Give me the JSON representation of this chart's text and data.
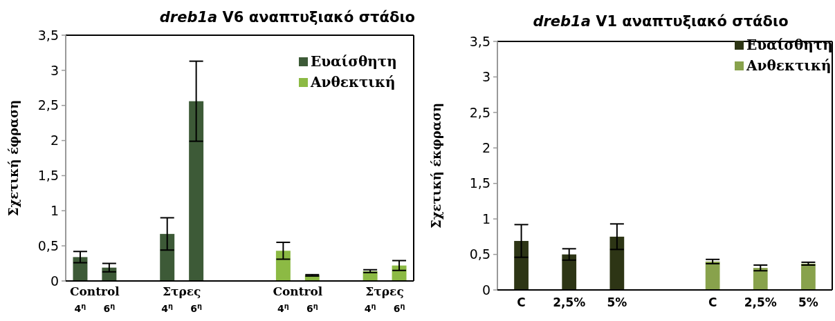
{
  "chart_data": [
    {
      "type": "bar",
      "title": "dreb1a V6 αναπτυξιακό στάδιο",
      "ylabel": "Σχετική έφραση",
      "categories": [
        "4$^{η}$",
        "6$^{η}$",
        null,
        "4$^{η}$",
        "6$^{η}$",
        null,
        null,
        "4$^{η}$",
        "6$^{η}$",
        null,
        "4$^{η}$",
        "6$^{η}$"
      ],
      "series": [
        {
          "name": "Ευαίσθητη",
          "color": "#3d5a37",
          "values": [
            0.34,
            0.19,
            null,
            0.67,
            2.56,
            null,
            null,
            null,
            null,
            null,
            null,
            null
          ],
          "errors": [
            0.08,
            0.06,
            null,
            0.23,
            0.57,
            null,
            null,
            null,
            null,
            null,
            null,
            null
          ]
        },
        {
          "name": "Ανθεκτική",
          "color": "#8cba44",
          "values": [
            null,
            null,
            null,
            null,
            null,
            null,
            null,
            0.43,
            0.08,
            null,
            0.14,
            0.22
          ],
          "errors": [
            null,
            null,
            null,
            null,
            null,
            null,
            null,
            0.12,
            0.01,
            null,
            0.02,
            0.07
          ]
        }
      ],
      "annotations": [
        "Control",
        "Στρες",
        "Control",
        "Στρες"
      ],
      "ylim": [
        0,
        3.5
      ],
      "yticks": [
        0,
        {
          "value": 0.5,
          "label": "0,5"
        },
        1,
        {
          "value": 1.5,
          "label": "1,5"
        },
        2,
        {
          "value": 2.5,
          "label": "2,5"
        },
        3,
        {
          "value": 3.5,
          "label": "3,5"
        }
      ],
      "legend": "top right",
      "grid": false
    },
    {
      "type": "bar",
      "title": "dreb1a   V1 αναπτυξιακό στάδιο",
      "ylabel": "Σχετική έκφραση",
      "categories": [
        "C",
        "2,5%",
        "5%",
        null,
        "C",
        "2,5%",
        "5%"
      ],
      "series": [
        {
          "name": "Ευαίσθητη",
          "color": "#2d3515",
          "values": [
            0.69,
            0.5,
            0.75,
            null,
            null,
            null,
            null
          ],
          "errors": [
            0.23,
            0.08,
            0.18,
            null,
            null,
            null,
            null
          ]
        },
        {
          "name": "Ανθεκτική",
          "color": "#88a24c",
          "values": [
            null,
            null,
            null,
            null,
            0.4,
            0.31,
            0.37
          ],
          "errors": [
            null,
            null,
            null,
            null,
            0.03,
            0.04,
            0.02
          ]
        }
      ],
      "ylim": [
        0,
        3.5
      ],
      "yticks": [
        0,
        {
          "value": 0.5,
          "label": "0,5"
        },
        1,
        {
          "value": 1.5,
          "label": "1,5"
        },
        2,
        {
          "value": 2.5,
          "label": "2,5"
        },
        3,
        {
          "value": 3.5,
          "label": "3,5"
        }
      ],
      "legend": "top right",
      "grid": false
    }
  ]
}
